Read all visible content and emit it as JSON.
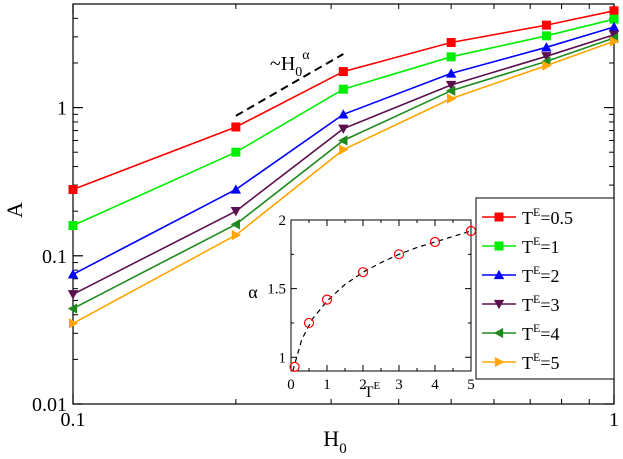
{
  "chart_data": [
    {
      "type": "line",
      "xscale": "log",
      "yscale": "log",
      "xlabel": "H",
      "xlabel_sub": "0",
      "ylabel": "A",
      "xlim": [
        0.1,
        1
      ],
      "ylim": [
        0.01,
        5
      ],
      "xticks": [
        {
          "value": 0.1,
          "label": "0.1"
        },
        {
          "value": 1,
          "label": "1"
        }
      ],
      "yticks": [
        {
          "value": 0.01,
          "label": "0.01"
        },
        {
          "value": 0.1,
          "label": "0.1"
        },
        {
          "value": 1,
          "label": "1"
        }
      ],
      "x": [
        0.1,
        0.2,
        0.316,
        0.5,
        0.75,
        1.0
      ],
      "series": [
        {
          "name": "T^E=0.5",
          "sup": "E",
          "prefix": "T",
          "suffix": "=0.5",
          "color": "#ff0000",
          "marker": "square",
          "values": [
            0.28,
            0.74,
            1.75,
            2.75,
            3.6,
            4.5
          ]
        },
        {
          "name": "T^E=1",
          "sup": "E",
          "prefix": "T",
          "suffix": "=1",
          "color": "#00ee00",
          "marker": "square",
          "values": [
            0.16,
            0.5,
            1.33,
            2.2,
            3.05,
            3.95
          ]
        },
        {
          "name": "T^E=2",
          "sup": "E",
          "prefix": "T",
          "suffix": "=2",
          "color": "#0000ff",
          "marker": "triangle-up",
          "values": [
            0.075,
            0.28,
            0.9,
            1.7,
            2.55,
            3.5
          ]
        },
        {
          "name": "T^E=3",
          "sup": "E",
          "prefix": "T",
          "suffix": "=3",
          "color": "#5c0f4e",
          "marker": "triangle-down",
          "values": [
            0.055,
            0.2,
            0.72,
            1.42,
            2.22,
            3.1
          ]
        },
        {
          "name": "T^E=4",
          "sup": "E",
          "prefix": "T",
          "suffix": "=4",
          "color": "#1f8b1f",
          "marker": "triangle-left",
          "values": [
            0.044,
            0.163,
            0.6,
            1.3,
            2.05,
            2.95
          ]
        },
        {
          "name": "T^E=5",
          "sup": "E",
          "prefix": "T",
          "suffix": "=5",
          "color": "#ffa500",
          "marker": "triangle-right",
          "values": [
            0.035,
            0.138,
            0.52,
            1.15,
            1.92,
            2.8
          ]
        }
      ],
      "annotation": {
        "text": "~H",
        "sub": "0",
        "sup": "α",
        "x_range": [
          0.2,
          0.316
        ],
        "y_range": [
          0.88,
          2.3
        ]
      },
      "legend_position": "right"
    },
    {
      "type": "scatter",
      "role": "inset",
      "xlabel": "T",
      "xlabel_sup": "E",
      "ylabel": "α",
      "xlim": [
        0,
        5
      ],
      "ylim": [
        0.9,
        2
      ],
      "xticks": [
        0,
        1,
        2,
        3,
        4,
        5
      ],
      "yticks": [
        1,
        1.5,
        2
      ],
      "marker": "open-circle",
      "color": "#ff0000",
      "points": [
        {
          "x": 0.1,
          "y": 0.93
        },
        {
          "x": 0.5,
          "y": 1.25
        },
        {
          "x": 1.0,
          "y": 1.42
        },
        {
          "x": 2.0,
          "y": 1.62
        },
        {
          "x": 3.0,
          "y": 1.75
        },
        {
          "x": 4.0,
          "y": 1.84
        },
        {
          "x": 5.0,
          "y": 1.92
        }
      ],
      "fit": {
        "style": "dashed",
        "color": "#000000",
        "x": [
          0.05,
          0.3,
          0.6,
          1.0,
          1.5,
          2.0,
          2.5,
          3.0,
          3.5,
          4.0,
          4.5,
          5.0
        ],
        "y": [
          0.9,
          1.13,
          1.28,
          1.41,
          1.53,
          1.62,
          1.69,
          1.75,
          1.8,
          1.84,
          1.88,
          1.92
        ]
      }
    }
  ]
}
